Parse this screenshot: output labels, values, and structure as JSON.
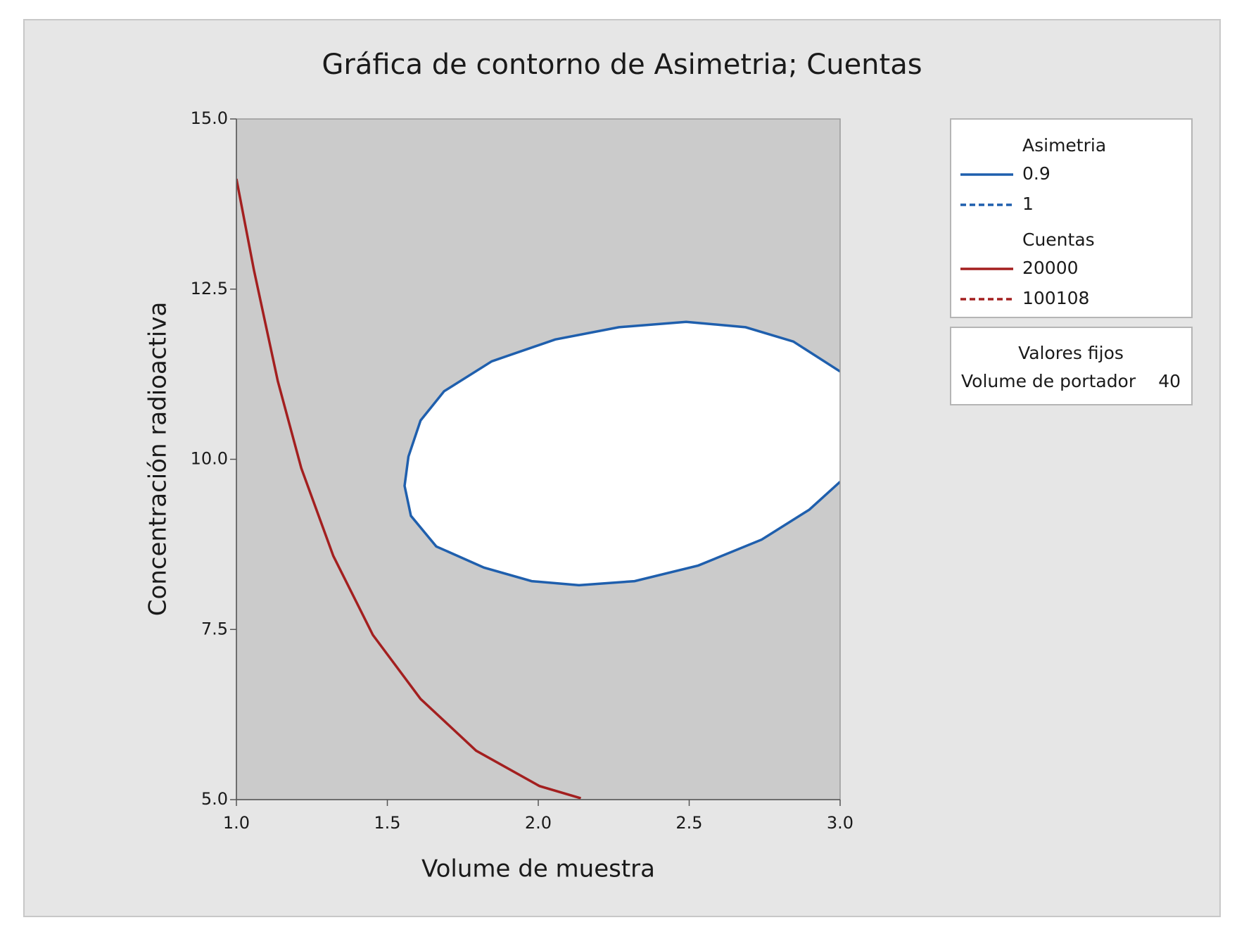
{
  "chart_data": {
    "type": "contour",
    "title": "Gráfica de contorno de Asimetria; Cuentas",
    "x_label": "Volume de muestra",
    "y_label": "Concentración radioactiva",
    "xlim": [
      1,
      3
    ],
    "ylim": [
      5,
      15
    ],
    "xticks": [
      {
        "value": 1,
        "label": "1.0"
      },
      1.5,
      {
        "value": 2,
        "label": "2.0"
      },
      2.5,
      {
        "value": 3,
        "label": "3.0"
      }
    ],
    "yticks": [
      {
        "value": 5,
        "label": "5.0"
      },
      7.5,
      {
        "value": 10,
        "label": "10.0"
      },
      12.5,
      {
        "value": 15,
        "label": "15.0"
      }
    ],
    "background": "#cbcbcb",
    "region_fill": "#ffffff",
    "legend": "right",
    "contours": [
      {
        "variable": "Asimetria",
        "levels": [
          {
            "name": "0.9",
            "color": "#1f5fad",
            "dash": false,
            "x": [
              3.0,
              2.845,
              2.687,
              2.49,
              2.267,
              2.056,
              1.846,
              1.688,
              1.61,
              1.57,
              1.557,
              1.578,
              1.662,
              1.82,
              1.978,
              2.135,
              2.319,
              2.53,
              2.74,
              2.898,
              3.0
            ],
            "y": [
              11.29,
              11.73,
              11.94,
              12.02,
              11.94,
              11.76,
              11.44,
              11.0,
              10.57,
              10.04,
              9.61,
              9.17,
              8.72,
              8.41,
              8.21,
              8.15,
              8.21,
              8.44,
              8.82,
              9.26,
              9.67
            ]
          },
          {
            "name": "1",
            "color": "#1f5fad",
            "dash": true,
            "x": [],
            "y": []
          }
        ]
      },
      {
        "variable": "Cuentas",
        "levels": [
          {
            "name": "20000",
            "color": "#a31f1f",
            "dash": false,
            "x": [
              1.0,
              1.058,
              1.137,
              1.215,
              1.321,
              1.452,
              1.61,
              1.794,
              2.004,
              2.141
            ],
            "y": [
              14.12,
              12.78,
              11.15,
              9.87,
              8.58,
              7.42,
              6.48,
              5.72,
              5.2,
              5.02
            ]
          },
          {
            "name": "100108",
            "color": "#a31f1f",
            "dash": true,
            "x": [],
            "y": []
          }
        ]
      }
    ],
    "fixed_values": {
      "title": "Valores fijos",
      "items": [
        {
          "name": "Volume de portador",
          "value": 40
        }
      ]
    }
  }
}
